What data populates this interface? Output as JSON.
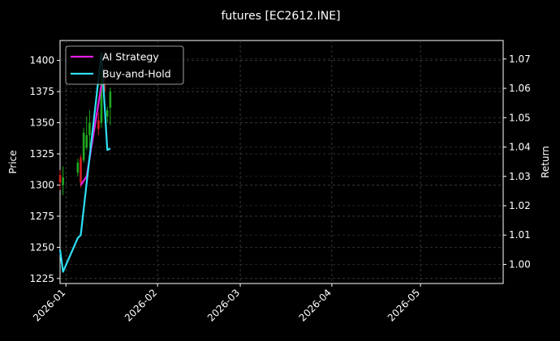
{
  "chart_data": {
    "type": "line",
    "title": "futures [EC2612.INE]",
    "xlabel": "",
    "ylabel": "Price",
    "y2label": "Return",
    "x_range": [
      "2025-12-30",
      "2026-05-29"
    ],
    "ylim": [
      1221,
      1416
    ],
    "y2lim": [
      0.9935,
      1.0763
    ],
    "x_ticks": [
      {
        "date": "2026-01-01",
        "label": "2026-01"
      },
      {
        "date": "2026-02-01",
        "label": "2026-02"
      },
      {
        "date": "2026-03-01",
        "label": "2026-03"
      },
      {
        "date": "2026-04-01",
        "label": "2026-04"
      },
      {
        "date": "2026-05-01",
        "label": "2026-05"
      }
    ],
    "y_ticks": [
      1225,
      1250,
      1275,
      1300,
      1325,
      1350,
      1375,
      1400
    ],
    "y2_ticks": [
      {
        "value": 1.0,
        "label": "1.00"
      },
      {
        "value": 1.01,
        "label": "1.01"
      },
      {
        "value": 1.02,
        "label": "1.02"
      },
      {
        "value": 1.03,
        "label": "1.03"
      },
      {
        "value": 1.04,
        "label": "1.04"
      },
      {
        "value": 1.05,
        "label": "1.05"
      },
      {
        "value": 1.06,
        "label": "1.06"
      },
      {
        "value": 1.07,
        "label": "1.07"
      }
    ],
    "grid": true,
    "legend_position": "top-left",
    "candles": [
      {
        "date": "2025-12-30",
        "open": 1308,
        "close": 1302,
        "high": 1312,
        "low": 1296
      },
      {
        "date": "2025-12-31",
        "open": 1300,
        "close": 1306,
        "high": 1315,
        "low": 1292
      },
      {
        "date": "2026-01-05",
        "open": 1310,
        "close": 1318,
        "high": 1321,
        "low": 1307
      },
      {
        "date": "2026-01-06",
        "open": 1322,
        "close": 1302,
        "high": 1324,
        "low": 1298
      },
      {
        "date": "2026-01-07",
        "open": 1320,
        "close": 1342,
        "high": 1346,
        "low": 1318
      },
      {
        "date": "2026-01-08",
        "open": 1330,
        "close": 1340,
        "high": 1355,
        "low": 1328
      },
      {
        "date": "2026-01-09",
        "open": 1340,
        "close": 1350,
        "high": 1360,
        "low": 1330
      },
      {
        "date": "2026-01-12",
        "open": 1352,
        "close": 1345,
        "high": 1358,
        "low": 1340
      },
      {
        "date": "2026-01-13",
        "open": 1350,
        "close": 1390,
        "high": 1398,
        "low": 1346
      },
      {
        "date": "2026-01-14",
        "open": 1388,
        "close": 1375,
        "high": 1395,
        "low": 1360
      },
      {
        "date": "2026-01-15",
        "open": 1355,
        "close": 1360,
        "high": 1363,
        "low": 1350
      },
      {
        "date": "2026-01-16",
        "open": 1362,
        "close": 1375,
        "high": 1378,
        "low": 1348
      }
    ],
    "series": [
      {
        "name": "AI Strategy",
        "color": "#e61ee6",
        "points": [
          {
            "date": "2026-01-06",
            "value": 1.027
          },
          {
            "date": "2026-01-08",
            "value": 1.03
          },
          {
            "date": "2026-01-13",
            "value": 1.061
          }
        ]
      },
      {
        "name": "Buy-and-Hold",
        "color": "#2fe0f5",
        "points": [
          {
            "date": "2025-12-30",
            "value": 1.005
          },
          {
            "date": "2025-12-31",
            "value": 0.9975
          },
          {
            "date": "2026-01-05",
            "value": 1.009
          },
          {
            "date": "2026-01-06",
            "value": 1.01
          },
          {
            "date": "2026-01-13",
            "value": 1.072
          },
          {
            "date": "2026-01-15",
            "value": 1.039
          },
          {
            "date": "2026-01-16",
            "value": 1.0395
          }
        ]
      }
    ],
    "candle_colors": {
      "up": "#1fa71f",
      "down": "#d62020"
    }
  }
}
